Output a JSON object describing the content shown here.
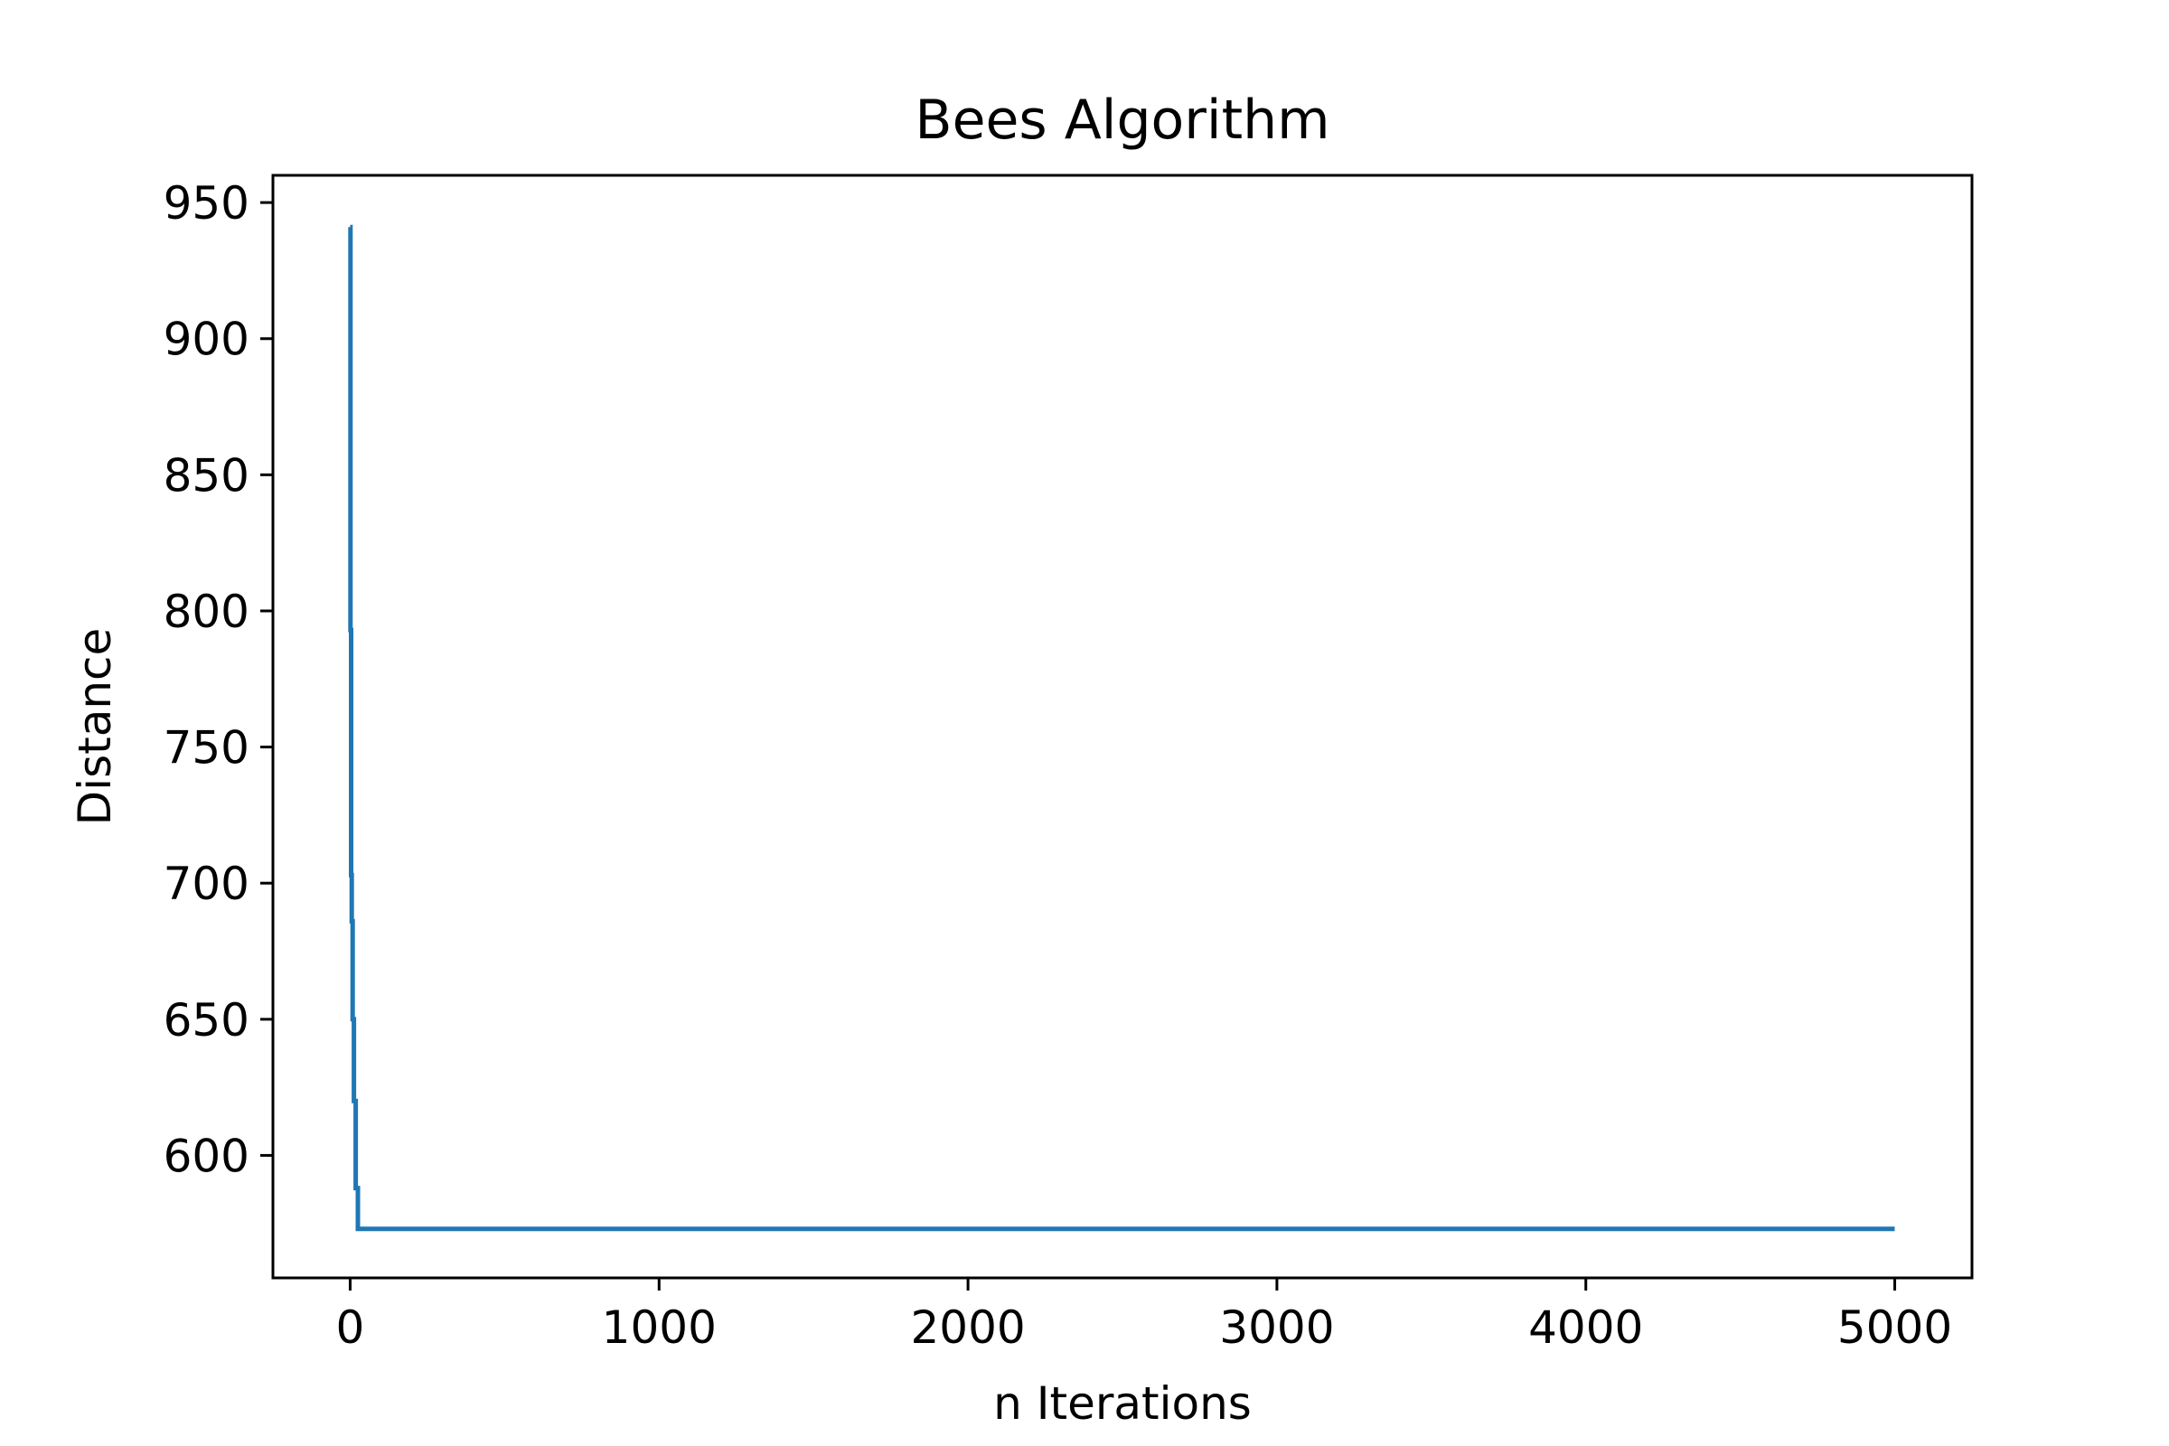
{
  "chart_data": {
    "type": "line",
    "title": "Bees Algorithm",
    "xlabel": "n Iterations",
    "ylabel": "Distance",
    "xlim": [
      -250,
      5250
    ],
    "ylim": [
      555,
      960
    ],
    "xticks": [
      0,
      1000,
      2000,
      3000,
      4000,
      5000
    ],
    "yticks": [
      600,
      650,
      700,
      750,
      800,
      850,
      900,
      950
    ],
    "xtick_labels": [
      "0",
      "1000",
      "2000",
      "3000",
      "4000",
      "5000"
    ],
    "ytick_labels": [
      "600",
      "650",
      "700",
      "750",
      "800",
      "850",
      "900",
      "950"
    ],
    "grid": false,
    "legend": null,
    "series": [
      {
        "color": "#1f77b4",
        "x": [
          0,
          1,
          1,
          3,
          3,
          5,
          5,
          8,
          8,
          12,
          12,
          18,
          18,
          25,
          25,
          5000
        ],
        "y": [
          941,
          941,
          793,
          793,
          703,
          703,
          686,
          686,
          650,
          650,
          620,
          620,
          588,
          588,
          573,
          573
        ]
      }
    ]
  }
}
